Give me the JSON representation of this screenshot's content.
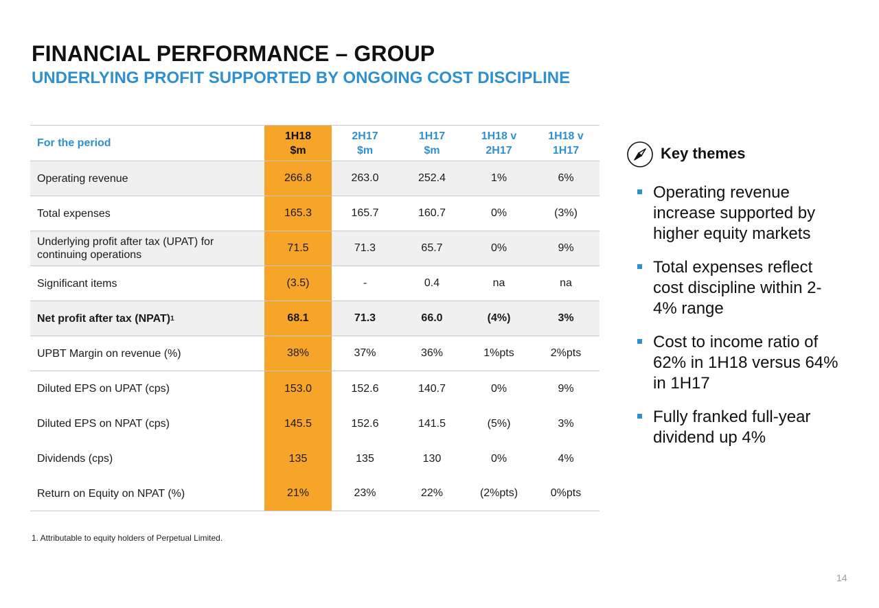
{
  "title": "FINANCIAL PERFORMANCE – GROUP",
  "subtitle": "UNDERLYING PROFIT SUPPORTED BY ONGOING COST DISCIPLINE",
  "table": {
    "header": {
      "label": "For the period",
      "cols": [
        {
          "line1": "1H18",
          "line2": "$m"
        },
        {
          "line1": "2H17",
          "line2": "$m"
        },
        {
          "line1": "1H17",
          "line2": "$m"
        },
        {
          "line1": "1H18 v",
          "line2": "2H17"
        },
        {
          "line1": "1H18 v",
          "line2": "1H17"
        }
      ]
    },
    "rows": [
      {
        "label": "Operating revenue",
        "values": [
          "266.8",
          "263.0",
          "252.4",
          "1%",
          "6%"
        ]
      },
      {
        "label": "Total expenses",
        "values": [
          "165.3",
          "165.7",
          "160.7",
          "0%",
          "(3%)"
        ]
      },
      {
        "label": "Underlying profit after tax (UPAT) for continuing operations",
        "values": [
          "71.5",
          "71.3",
          "65.7",
          "0%",
          "9%"
        ]
      },
      {
        "label": "Significant items",
        "values": [
          "(3.5)",
          "-",
          "0.4",
          "na",
          "na"
        ]
      },
      {
        "label": "Net profit after tax (NPAT)",
        "sup": "1",
        "values": [
          "68.1",
          "71.3",
          "66.0",
          "(4%)",
          "3%"
        ]
      },
      {
        "label": "UPBT Margin on revenue (%)",
        "values": [
          "38%",
          "37%",
          "36%",
          "1%pts",
          "2%pts"
        ]
      },
      {
        "label": "Diluted EPS on UPAT (cps)",
        "values": [
          "153.0",
          "152.6",
          "140.7",
          "0%",
          "9%"
        ]
      },
      {
        "label": "Diluted EPS on NPAT (cps)",
        "values": [
          "145.5",
          "152.6",
          "141.5",
          "(5%)",
          "3%"
        ]
      },
      {
        "label": "Dividends (cps)",
        "values": [
          "135",
          "135",
          "130",
          "0%",
          "4%"
        ]
      },
      {
        "label": "Return on Equity on NPAT (%)",
        "values": [
          "21%",
          "23%",
          "22%",
          "(2%pts)",
          "0%pts"
        ]
      }
    ]
  },
  "footnote": "1. Attributable to equity holders of Perpetual Limited.",
  "key_themes": {
    "title": "Key themes",
    "icon": "compass-icon",
    "bullets": [
      "Operating revenue increase supported by higher equity markets",
      "Total expenses reflect cost discipline within 2-4% range",
      "Cost to income ratio of 62% in 1H18 versus 64% in 1H17",
      "Fully franked full-year dividend up 4%"
    ]
  },
  "page_number": "14",
  "colors": {
    "accent": "#2f8fcf",
    "highlight": "#f7a529",
    "shade": "#f0f0f0"
  }
}
